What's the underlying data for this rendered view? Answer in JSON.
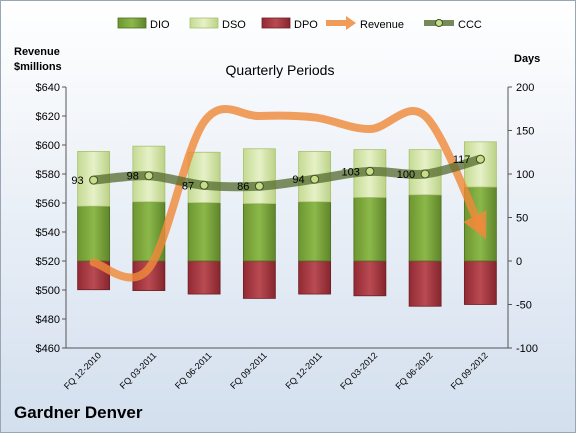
{
  "chart_data": {
    "type": "bar",
    "title": "Quarterly Periods",
    "company": "Gardner Denver",
    "left_axis": {
      "label_line1": "Revenue",
      "label_line2": "$millions",
      "min": 460,
      "max": 640,
      "step": 20,
      "prefix": "$"
    },
    "right_axis": {
      "label": "Days",
      "min": -100,
      "max": 200,
      "step": 50
    },
    "categories": [
      "FQ 12-2010",
      "FQ 03-2011",
      "FQ 06-2011",
      "FQ 09-2011",
      "FQ 12-2011",
      "FQ 03-2012",
      "FQ 06-2012",
      "FQ 09-2012"
    ],
    "series": [
      {
        "name": "DIO",
        "axis": "right",
        "type": "stacked-bar",
        "values": [
          63,
          68,
          67,
          66,
          68,
          73,
          76,
          85
        ]
      },
      {
        "name": "DSO",
        "axis": "right",
        "type": "stacked-bar",
        "values": [
          63,
          64,
          58,
          63,
          58,
          55,
          52,
          52
        ]
      },
      {
        "name": "DPO",
        "axis": "right",
        "type": "negative-bar",
        "values": [
          -33,
          -34,
          -38,
          -43,
          -38,
          -40,
          -52,
          -50
        ]
      },
      {
        "name": "Revenue",
        "axis": "left",
        "type": "line",
        "values": [
          519,
          515,
          616,
          620,
          619,
          611,
          620,
          543
        ]
      },
      {
        "name": "CCC",
        "axis": "right",
        "type": "line",
        "values": [
          93,
          98,
          87,
          86,
          94,
          103,
          100,
          117
        ]
      }
    ],
    "ccc_labels": [
      "93",
      "98",
      "87",
      "86",
      "94",
      "103",
      "100",
      "117"
    ],
    "colors": {
      "DIO": "#7ea83c",
      "DSO": "#d4e6a5",
      "DPO": "#a8343e",
      "Revenue": "#ef8a3b",
      "CCC": "#546b2e",
      "background_top": "#ffffff",
      "background_bottom": "#d3dfee"
    },
    "legend_position": "top"
  }
}
